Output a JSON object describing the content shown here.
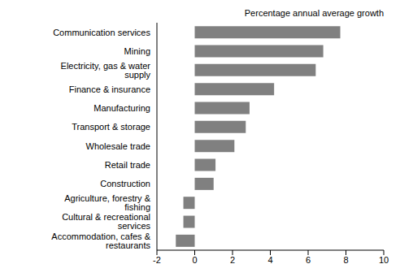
{
  "chart_data": {
    "type": "bar",
    "orientation": "horizontal",
    "x_label": "Percentage annual average growth",
    "categories": [
      "Communication services",
      "Mining",
      "Electricity, gas & water supply",
      "Finance & insurance",
      "Manufacturing",
      "Transport & storage",
      "Wholesale trade",
      "Retail trade",
      "Construction",
      "Agriculture, forestry & fishing",
      "Cultural & recreational services",
      "Accommodation, cafes & restaurants"
    ],
    "values": [
      7.7,
      6.8,
      6.4,
      4.2,
      2.9,
      2.7,
      2.1,
      1.1,
      1.0,
      -0.6,
      -0.6,
      -1.0
    ],
    "color": "#808080",
    "xlim": [
      -2,
      10
    ],
    "xticks": [
      -2,
      0,
      2,
      4,
      6,
      8,
      10
    ],
    "grid": false
  }
}
